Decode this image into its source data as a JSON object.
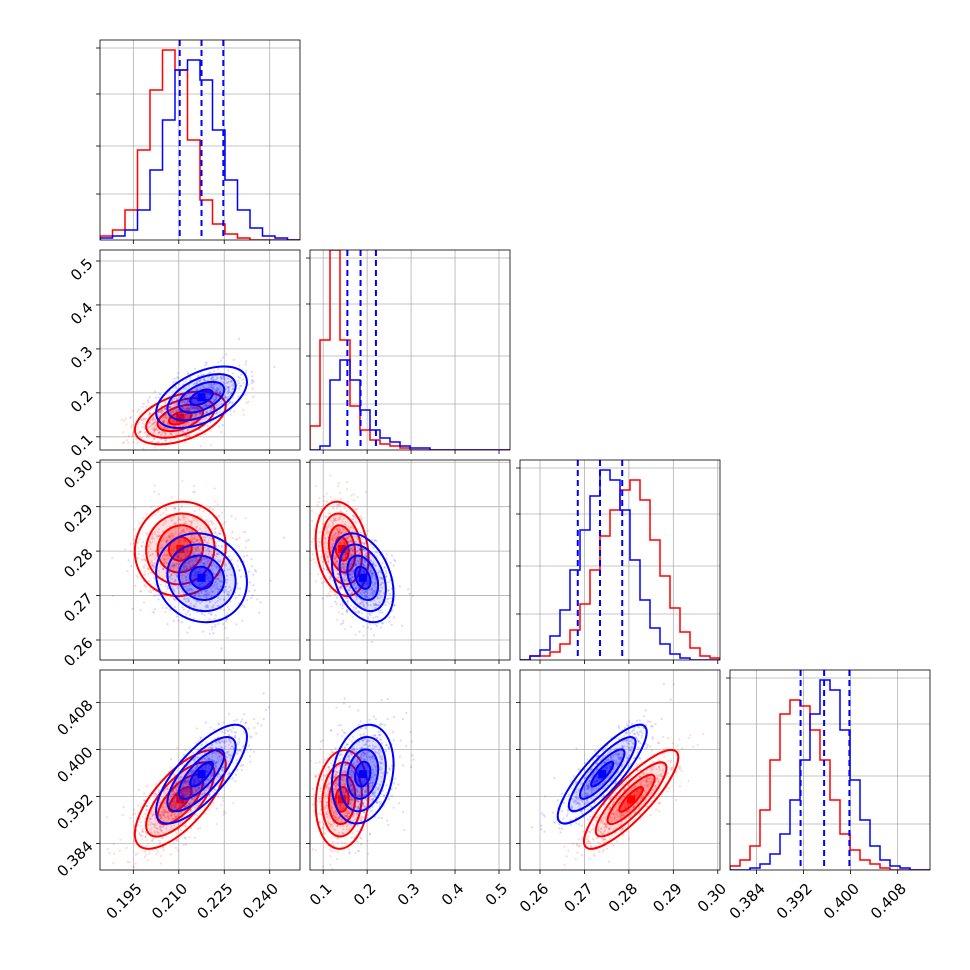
{
  "chart_data": {
    "type": "corner",
    "title": "",
    "n_params": 4,
    "grid": true,
    "parameters": [
      {
        "ticks": [
          0.195,
          0.21,
          0.225,
          0.24
        ],
        "tick_labels": [
          "0.195",
          "0.210",
          "0.225",
          "0.240"
        ],
        "range": [
          0.184,
          0.25
        ],
        "hist_ymax": 1.0
      },
      {
        "ticks": [
          0.1,
          0.2,
          0.3,
          0.4,
          0.5
        ],
        "tick_labels": [
          "0.1",
          "0.2",
          "0.3",
          "0.4",
          "0.5"
        ],
        "range": [
          0.07,
          0.525
        ],
        "hist_ymax": 1.0
      },
      {
        "ticks": [
          0.26,
          0.27,
          0.28,
          0.29,
          0.3
        ],
        "tick_labels": [
          "0.26",
          "0.27",
          "0.28",
          "0.29",
          "0.30"
        ],
        "range": [
          0.2555,
          0.3005
        ],
        "hist_ymax": 1.0
      },
      {
        "ticks": [
          0.384,
          0.392,
          0.4,
          0.408
        ],
        "tick_labels": [
          "0.384",
          "0.392",
          "0.400",
          "0.408"
        ],
        "range": [
          0.3795,
          0.4135
        ],
        "hist_ymax": 1.0
      }
    ],
    "series": [
      {
        "color": "#ff0000",
        "means": [
          0.2105,
          0.143,
          0.2805,
          0.3915
        ],
        "sds": [
          0.0075,
          0.03,
          0.0053,
          0.0042
        ],
        "correlations": {
          "0_1": 0.45,
          "0_2": 0.05,
          "0_3": 0.7,
          "1_2": -0.2,
          "1_3": 0.1,
          "2_3": 0.85
        },
        "histograms": [
          [
            0.02,
            0.05,
            0.15,
            0.45,
            0.75,
            0.95,
            0.85,
            0.5,
            0.2,
            0.08,
            0.03,
            0.01,
            0.0,
            0.0,
            0.0,
            0.0
          ],
          [
            0.12,
            0.55,
            1.0,
            0.55,
            0.22,
            0.1,
            0.05,
            0.03,
            0.02,
            0.01,
            0.0,
            0.0,
            0.0,
            0.0,
            0.0,
            0.0,
            0.0,
            0.0,
            0.0,
            0.0
          ],
          [
            0.0,
            0.02,
            0.02,
            0.04,
            0.08,
            0.15,
            0.28,
            0.45,
            0.62,
            0.75,
            0.85,
            0.9,
            0.8,
            0.6,
            0.42,
            0.26,
            0.14,
            0.06,
            0.02,
            0.01
          ],
          [
            0.02,
            0.05,
            0.12,
            0.3,
            0.55,
            0.78,
            0.85,
            0.82,
            0.7,
            0.55,
            0.35,
            0.18,
            0.1,
            0.05,
            0.03,
            0.01,
            0.0,
            0.0,
            0.0,
            0.0
          ]
        ]
      },
      {
        "color": "#0000ff",
        "means": [
          0.2175,
          0.19,
          0.274,
          0.3958
        ],
        "sds": [
          0.0075,
          0.035,
          0.005,
          0.0042
        ],
        "correlations": {
          "0_1": 0.5,
          "0_2": -0.1,
          "0_3": 0.75,
          "1_2": -0.35,
          "1_3": 0.2,
          "2_3": 0.85
        },
        "histograms": [
          [
            0.01,
            0.02,
            0.05,
            0.15,
            0.35,
            0.6,
            0.85,
            0.9,
            0.8,
            0.55,
            0.3,
            0.15,
            0.06,
            0.02,
            0.01,
            0.0
          ],
          [
            0.0,
            0.02,
            0.35,
            0.45,
            0.35,
            0.2,
            0.1,
            0.06,
            0.04,
            0.02,
            0.01,
            0.01,
            0.0,
            0.0,
            0.0,
            0.0,
            0.0,
            0.0,
            0.0,
            0.0
          ],
          [
            0.0,
            0.02,
            0.05,
            0.12,
            0.25,
            0.45,
            0.65,
            0.82,
            0.95,
            0.9,
            0.75,
            0.5,
            0.3,
            0.16,
            0.08,
            0.03,
            0.01,
            0.0,
            0.0,
            0.0
          ],
          [
            0.0,
            0.0,
            0.01,
            0.03,
            0.08,
            0.18,
            0.35,
            0.55,
            0.78,
            0.95,
            0.9,
            0.7,
            0.45,
            0.25,
            0.12,
            0.05,
            0.02,
            0.01,
            0.0,
            0.0
          ]
        ],
        "quantiles": [
          [
            0.2103,
            0.2175,
            0.2247
          ],
          [
            0.155,
            0.185,
            0.22
          ],
          [
            0.2685,
            0.2735,
            0.2785
          ],
          [
            0.3915,
            0.3955,
            0.3998
          ]
        ]
      }
    ]
  }
}
